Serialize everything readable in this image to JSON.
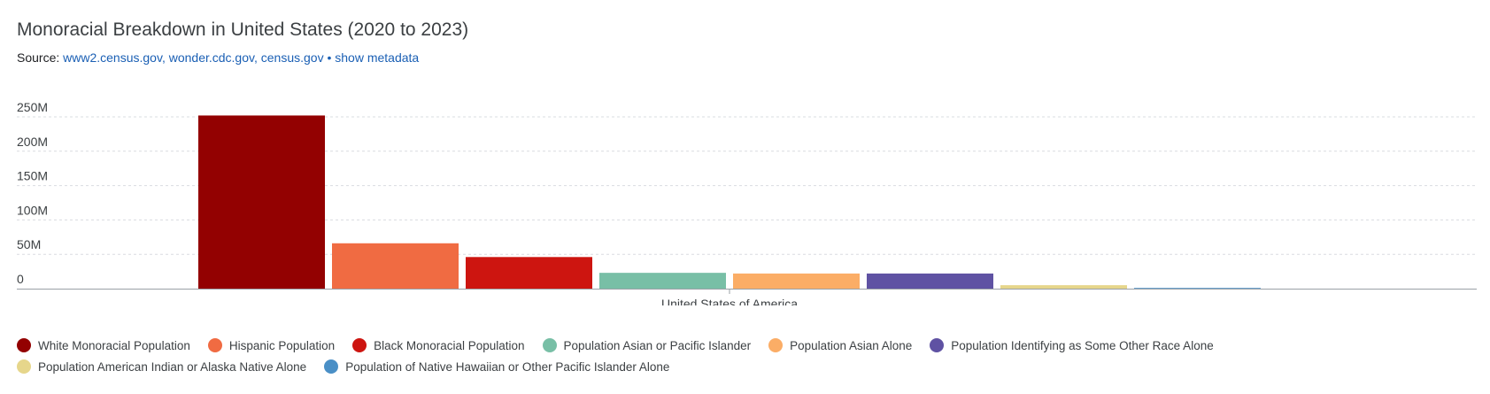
{
  "header": {
    "title": "Monoracial Breakdown in United States (2020 to 2023)",
    "source_prefix": "Source: ",
    "sources": [
      "www2.census.gov",
      "wonder.cdc.gov",
      "census.gov"
    ],
    "show_metadata": "show metadata"
  },
  "chart_data": {
    "type": "bar",
    "title": "Monoracial Breakdown in United States (2020 to 2023)",
    "categories": [
      "United States of America"
    ],
    "ylim": [
      0,
      250000000
    ],
    "yticks": [
      {
        "value": 0,
        "label": "0"
      },
      {
        "value": 50000000,
        "label": "50M"
      },
      {
        "value": 100000000,
        "label": "100M"
      },
      {
        "value": 150000000,
        "label": "150M"
      },
      {
        "value": 200000000,
        "label": "200M"
      },
      {
        "value": 250000000,
        "label": "250M"
      }
    ],
    "grid": true,
    "legend_position": "bottom",
    "series": [
      {
        "name": "White Monoracial Population",
        "color": "#930101",
        "values": [
          252000000
        ]
      },
      {
        "name": "Hispanic Population",
        "color": "#f06b42",
        "values": [
          66000000
        ]
      },
      {
        "name": "Black Monoracial Population",
        "color": "#cd1510",
        "values": [
          46000000
        ]
      },
      {
        "name": "Population Asian or Pacific Islander",
        "color": "#78bfa6",
        "values": [
          23000000
        ]
      },
      {
        "name": "Population Asian Alone",
        "color": "#fbad66",
        "values": [
          22000000
        ]
      },
      {
        "name": "Population Identifying as Some Other Race Alone",
        "color": "#5f52a3",
        "values": [
          22000000
        ]
      },
      {
        "name": "Population American Indian or Alaska Native Alone",
        "color": "#e6d68b",
        "values": [
          5000000
        ]
      },
      {
        "name": "Population of Native Hawaiian or Other Pacific Islander Alone",
        "color": "#4a8fc6",
        "values": [
          700000
        ]
      }
    ]
  }
}
